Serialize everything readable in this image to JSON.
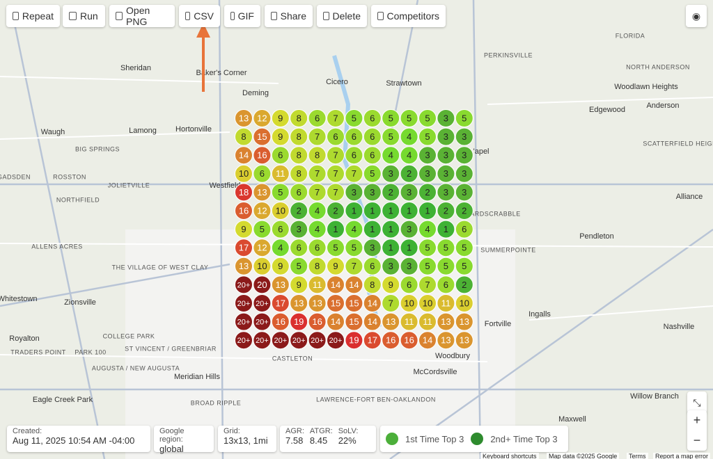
{
  "toolbar": {
    "buttons": [
      "Repeat",
      "Run",
      "Open PNG",
      "CSV",
      "GIF",
      "Share",
      "Delete",
      "Competitors"
    ]
  },
  "map": {
    "labels": [
      "Sheridan",
      "Baker's Corner",
      "Cicero",
      "Strawtown",
      "Deming",
      "PERKINSVILLE",
      "FLORIDA",
      "NORTH ANDERSON",
      "Woodlawn Heights",
      "Anderson",
      "Edgewood",
      "Waugh",
      "Lamong",
      "Hortonville",
      "BIG SPRINGS",
      "L'apel",
      "SCATTERFIELD HEIGHTS",
      "GADSDEN",
      "ROSSTON",
      "JOLIETVILLE",
      "Westfield",
      "NORTHFIELD",
      "HARDSCRABBLE",
      "Alliance",
      "ALLENS ACRES",
      "SUMMERPOINTE",
      "Pendleton",
      "THE VILLAGE OF WEST CLAY",
      "Whitestown",
      "Zionsville",
      "Ingalls",
      "Fortville",
      "Nashville",
      "Royalton",
      "COLLEGE PARK",
      "TRADERS POINT",
      "ST VINCENT / GREENBRIAR",
      "PARK 100",
      "Woodbury",
      "CASTLETON",
      "AUGUSTA / NEW AUGUSTA",
      "Meridian Hills",
      "McCordsville",
      "Eagle Creek Park",
      "BROAD RIPPLE",
      "LAWRENCE-FORT BEN-OAKLANDON",
      "Willow Branch",
      "Maxwell"
    ],
    "footer": [
      "Keyboard shortcuts",
      "Map data ©2025 Google",
      "Terms",
      "Report a map error"
    ]
  },
  "grid": {
    "rows": [
      [
        "13",
        "12",
        "9",
        "8",
        "6",
        "7",
        "5",
        "6",
        "5",
        "5",
        "5",
        "3",
        "5"
      ],
      [
        "8",
        "15",
        "9",
        "8",
        "7",
        "6",
        "6",
        "6",
        "5",
        "4",
        "5",
        "3",
        "3"
      ],
      [
        "14",
        "16",
        "6",
        "8",
        "8",
        "7",
        "6",
        "6",
        "4",
        "4",
        "3",
        "3",
        "3"
      ],
      [
        "10",
        "6",
        "11",
        "8",
        "7",
        "7",
        "7",
        "5",
        "3",
        "2",
        "3",
        "3",
        "3"
      ],
      [
        "18",
        "13",
        "5",
        "6",
        "7",
        "7",
        "3",
        "3",
        "2",
        "3",
        "2",
        "3",
        "3"
      ],
      [
        "16",
        "12",
        "10",
        "2",
        "4",
        "2",
        "1",
        "1",
        "1",
        "1",
        "1",
        "2",
        "2"
      ],
      [
        "9",
        "5",
        "6",
        "3",
        "4",
        "1",
        "4",
        "1",
        "1",
        "3",
        "4",
        "1",
        "6"
      ],
      [
        "17",
        "12",
        "4",
        "6",
        "6",
        "5",
        "5",
        "3",
        "1",
        "1",
        "5",
        "5",
        "5"
      ],
      [
        "13",
        "10",
        "9",
        "5",
        "8",
        "9",
        "7",
        "6",
        "3",
        "3",
        "5",
        "5",
        "5"
      ],
      [
        "20+",
        "20",
        "13",
        "9",
        "11",
        "14",
        "14",
        "8",
        "9",
        "6",
        "7",
        "6",
        "2"
      ],
      [
        "20+",
        "20+",
        "17",
        "13",
        "13",
        "15",
        "15",
        "14",
        "7",
        "10",
        "10",
        "11",
        "10"
      ],
      [
        "20+",
        "20+",
        "16",
        "19",
        "16",
        "14",
        "15",
        "14",
        "13",
        "11",
        "11",
        "13",
        "13"
      ],
      [
        "20+",
        "20+",
        "20+",
        "20+",
        "20+",
        "20+",
        "19",
        "17",
        "16",
        "16",
        "14",
        "13",
        "13"
      ]
    ]
  },
  "info": {
    "created_label": "Created:",
    "created": "Aug 11, 2025 10:54 AM -04:00",
    "region_label": "Google region:",
    "region": "global",
    "grid_label": "Grid:",
    "grid": "13x13, 1mi",
    "agr_label": "AGR:",
    "agr": "7.58",
    "atgr_label": "ATGR:",
    "atgr": "8.45",
    "solv_label": "SoLV:",
    "solv": "22%"
  },
  "legend": [
    "1st Time Top 3",
    "2nd+ Time Top 3"
  ]
}
